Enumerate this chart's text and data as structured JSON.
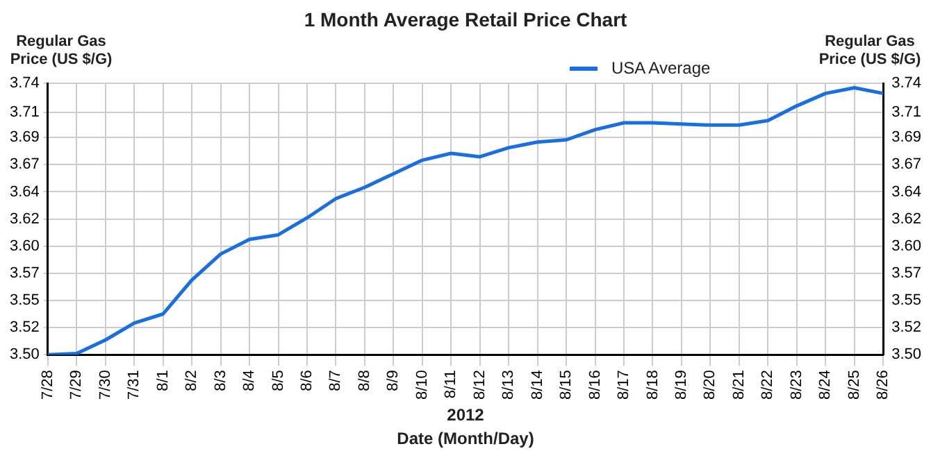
{
  "chart_data": {
    "type": "line",
    "title": "1 Month Average Retail Price Chart",
    "ylabel": "Regular Gas Price (US $/G)",
    "y2label": "Regular Gas Price (US $/G)",
    "xlabel": "Date (Month/Day)",
    "annotations": [
      "2012"
    ],
    "categories": [
      "7/28",
      "7/29",
      "7/30",
      "7/31",
      "8/1",
      "8/2",
      "8/3",
      "8/4",
      "8/5",
      "8/6",
      "8/7",
      "8/8",
      "8/9",
      "8/10",
      "8/11",
      "8/12",
      "8/13",
      "8/14",
      "8/15",
      "8/16",
      "8/17",
      "8/18",
      "8/19",
      "8/20",
      "8/21",
      "8/22",
      "8/23",
      "8/24",
      "8/25",
      "8/26"
    ],
    "series": [
      {
        "name": "USA Average",
        "color": "#1a6fe0",
        "values": [
          3.5,
          3.501,
          3.513,
          3.528,
          3.536,
          3.566,
          3.589,
          3.602,
          3.606,
          3.621,
          3.638,
          3.648,
          3.66,
          3.672,
          3.678,
          3.675,
          3.683,
          3.688,
          3.69,
          3.699,
          3.705,
          3.705,
          3.704,
          3.703,
          3.703,
          3.707,
          3.72,
          3.731,
          3.736,
          3.731
        ]
      }
    ],
    "ylim": [
      3.5,
      3.74
    ],
    "yticks": [
      {
        "value": 3.5,
        "label": "3.50"
      },
      {
        "value": 3.524,
        "label": "3.52"
      },
      {
        "value": 3.548,
        "label": "3.55"
      },
      {
        "value": 3.572,
        "label": "3.57"
      },
      {
        "value": 3.596,
        "label": "3.60"
      },
      {
        "value": 3.62,
        "label": "3.62"
      },
      {
        "value": 3.644,
        "label": "3.64"
      },
      {
        "value": 3.668,
        "label": "3.67"
      },
      {
        "value": 3.692,
        "label": "3.69"
      },
      {
        "value": 3.714,
        "label": "3.71"
      },
      {
        "value": 3.74,
        "label": "3.74"
      }
    ],
    "y2lim": [
      3.5,
      3.74
    ],
    "y2ticks": [
      {
        "value": 3.5,
        "label": "3.50"
      },
      {
        "value": 3.524,
        "label": "3.52"
      },
      {
        "value": 3.548,
        "label": "3.55"
      },
      {
        "value": 3.572,
        "label": "3.57"
      },
      {
        "value": 3.596,
        "label": "3.60"
      },
      {
        "value": 3.62,
        "label": "3.62"
      },
      {
        "value": 3.644,
        "label": "3.64"
      },
      {
        "value": 3.668,
        "label": "3.67"
      },
      {
        "value": 3.692,
        "label": "3.69"
      },
      {
        "value": 3.714,
        "label": "3.71"
      },
      {
        "value": 3.74,
        "label": "3.74"
      }
    ],
    "grid": true,
    "legend": "top right",
    "marker": "none",
    "line_style": "solid"
  }
}
